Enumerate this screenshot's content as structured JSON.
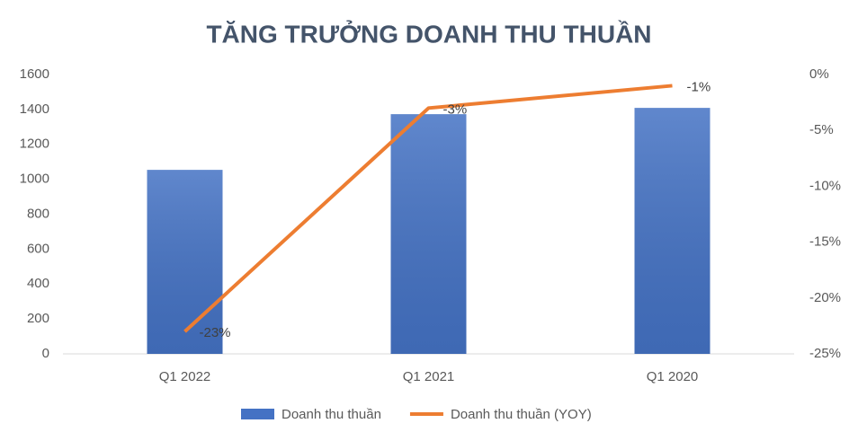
{
  "chart_data": {
    "type": "combo",
    "title": "TĂNG TRƯỞNG DOANH THU THUẦN",
    "categories": [
      "Q1 2022",
      "Q1 2021",
      "Q1 2020"
    ],
    "series": [
      {
        "name": "Doanh thu thuần",
        "type": "bar",
        "color": "#4472c4",
        "values": [
          1054,
          1373,
          1409
        ]
      },
      {
        "name": "Doanh thu thuần (YOY)",
        "type": "line",
        "axis": "y2",
        "color": "#ed7d31",
        "values": [
          -23,
          -3,
          -1
        ],
        "value_labels": [
          "-23%",
          "-3%",
          "-1%"
        ]
      }
    ],
    "ylim": [
      0,
      1600
    ],
    "yticks": [
      0,
      200,
      400,
      600,
      800,
      1000,
      1200,
      1400,
      1600
    ],
    "y2lim": [
      -25,
      0
    ],
    "y2ticks": [
      {
        "value": 0,
        "label": "0%"
      },
      {
        "value": -5,
        "label": "-5%"
      },
      {
        "value": -10,
        "label": "-10%"
      },
      {
        "value": -15,
        "label": "-15%"
      },
      {
        "value": -20,
        "label": "-20%"
      },
      {
        "value": -25,
        "label": "-25%"
      }
    ],
    "grid": false,
    "legend": "bottom"
  }
}
